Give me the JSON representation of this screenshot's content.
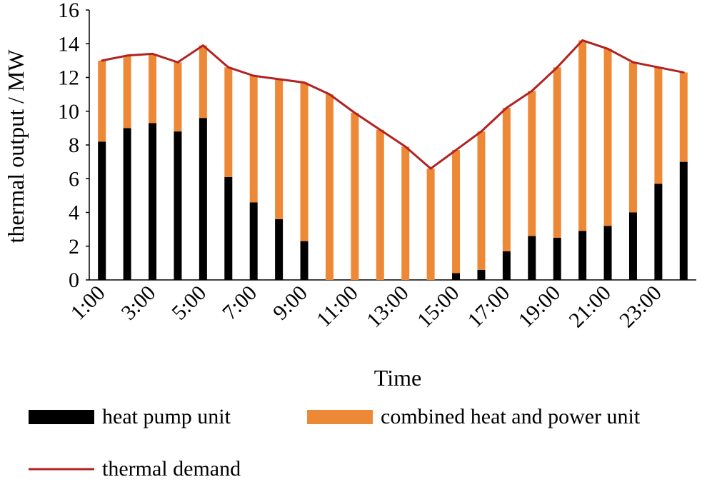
{
  "chart_data": {
    "type": "bar",
    "stacked": true,
    "title": "",
    "xlabel": "Time",
    "ylabel": "thermal output / MW",
    "ylim": [
      0,
      16
    ],
    "yticks": [
      0,
      2,
      4,
      6,
      8,
      10,
      12,
      14,
      16
    ],
    "categories": [
      "1:00",
      "2:00",
      "3:00",
      "4:00",
      "5:00",
      "6:00",
      "7:00",
      "8:00",
      "9:00",
      "10:00",
      "11:00",
      "12:00",
      "13:00",
      "14:00",
      "15:00",
      "16:00",
      "17:00",
      "18:00",
      "19:00",
      "20:00",
      "21:00",
      "22:00",
      "23:00",
      "24:00"
    ],
    "x_tick_labels": [
      "1:00",
      "3:00",
      "5:00",
      "7:00",
      "9:00",
      "11:00",
      "13:00",
      "15:00",
      "17:00",
      "19:00",
      "21:00",
      "23:00"
    ],
    "series": [
      {
        "name": "heat pump unit",
        "kind": "bar",
        "color": "#000000",
        "values": [
          8.2,
          9.0,
          9.3,
          8.8,
          9.6,
          6.1,
          4.6,
          3.6,
          2.3,
          0,
          0,
          0,
          0,
          0,
          0.4,
          0.6,
          1.7,
          2.6,
          2.5,
          2.9,
          3.2,
          4.0,
          5.7,
          7.0
        ]
      },
      {
        "name": "combined heat and power unit",
        "kind": "bar",
        "color": "#ED8936",
        "values": [
          4.8,
          4.3,
          4.1,
          4.1,
          4.3,
          6.5,
          7.5,
          8.3,
          9.4,
          11.0,
          9.9,
          8.9,
          7.9,
          6.6,
          7.3,
          8.2,
          8.5,
          8.6,
          10.1,
          11.3,
          10.5,
          8.9,
          6.9,
          5.3
        ]
      },
      {
        "name": "thermal demand",
        "kind": "line",
        "color": "#B22222",
        "values": [
          13.0,
          13.3,
          13.4,
          12.9,
          13.9,
          12.6,
          12.1,
          11.9,
          11.7,
          11.0,
          9.9,
          8.9,
          7.9,
          6.6,
          7.7,
          8.8,
          10.2,
          11.2,
          12.6,
          14.2,
          13.7,
          12.9,
          12.6,
          12.3
        ]
      }
    ],
    "legend": {
      "position": "bottom",
      "items": [
        {
          "label": "heat pump unit",
          "swatch": "bar",
          "color": "#000000"
        },
        {
          "label": "combined heat and power unit",
          "swatch": "bar",
          "color": "#ED8936"
        },
        {
          "label": "thermal demand",
          "swatch": "line",
          "color": "#B22222"
        }
      ]
    }
  }
}
